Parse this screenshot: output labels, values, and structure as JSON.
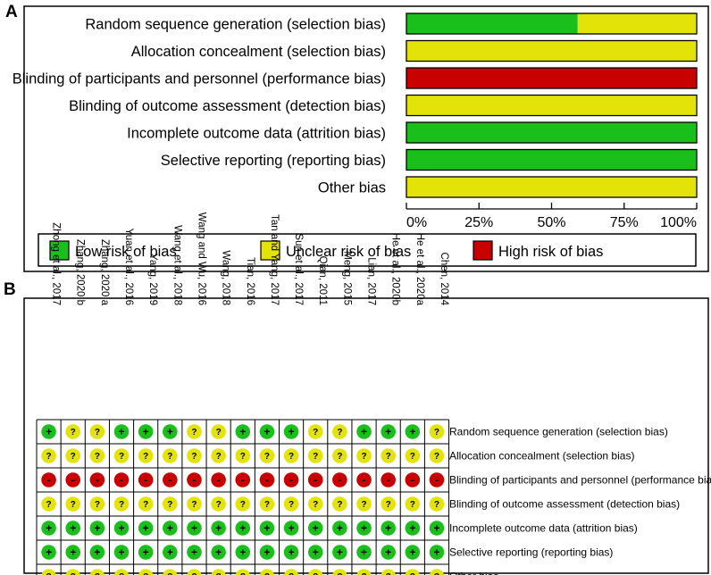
{
  "panel_a_label": "A",
  "panel_b_label": "B",
  "colors": {
    "low": "#1bbf1b",
    "unclear": "#e3e30a",
    "high": "#c80000"
  },
  "chart_data": [
    {
      "type": "bar",
      "orientation": "horizontal",
      "stacked": true,
      "title": "",
      "xlabel": "",
      "ylabel": "",
      "xlim": [
        0,
        100
      ],
      "ticks": [
        "0%",
        "25%",
        "50%",
        "75%",
        "100%"
      ],
      "categories": [
        "Random sequence generation (selection bias)",
        "Allocation concealment (selection bias)",
        "Blinding of participants and personnel (performance bias)",
        "Blinding of outcome assessment (detection bias)",
        "Incomplete outcome data (attrition bias)",
        "Selective reporting (reporting bias)",
        "Other bias"
      ],
      "series": [
        {
          "name": "Low risk of bias",
          "key": "low",
          "values": [
            59,
            0,
            0,
            0,
            100,
            100,
            0
          ]
        },
        {
          "name": "Unclear risk of bias",
          "key": "unclear",
          "values": [
            41,
            100,
            0,
            100,
            0,
            0,
            100
          ]
        },
        {
          "name": "High risk of bias",
          "key": "high",
          "values": [
            0,
            0,
            100,
            0,
            0,
            0,
            0
          ]
        }
      ],
      "legend": [
        "Low risk of bias",
        "Unclear risk of bias",
        "High risk of bias"
      ],
      "legend_position": "bottom"
    },
    {
      "type": "table",
      "title": "",
      "studies": [
        "Zhong et al., 2017",
        "Zhang, 2020 b",
        "Zhang, 2020 a",
        "Yuan et al., 2016",
        "Yang, 2019",
        "Wang et al., 2018",
        "Wang and Wu, 2016",
        "Wang, 2018",
        "Tian, 2016",
        "Tan and Yang, 2017",
        "Sun et al., 2017",
        "Qian, 2011",
        "Meng, 2015",
        "Lian, 2017",
        "He et al., 2020b",
        "He et al., 2020a",
        "Chen, 2014"
      ],
      "domains": [
        "Random sequence generation (selection bias)",
        "Allocation concealment (selection bias)",
        "Blinding of participants and personnel (performance bias)",
        "Blinding of outcome assessment (detection bias)",
        "Incomplete outcome data (attrition bias)",
        "Selective reporting (reporting bias)",
        "Other bias"
      ],
      "symbols": {
        "low": "+",
        "unclear": "?",
        "high": "-"
      },
      "ratings": [
        [
          "low",
          "unclear",
          "unclear",
          "low",
          "low",
          "low",
          "unclear",
          "unclear",
          "low",
          "low",
          "low",
          "unclear",
          "unclear",
          "low",
          "low",
          "low",
          "unclear"
        ],
        [
          "unclear",
          "unclear",
          "unclear",
          "unclear",
          "unclear",
          "unclear",
          "unclear",
          "unclear",
          "unclear",
          "unclear",
          "unclear",
          "unclear",
          "unclear",
          "unclear",
          "unclear",
          "unclear",
          "unclear"
        ],
        [
          "high",
          "high",
          "high",
          "high",
          "high",
          "high",
          "high",
          "high",
          "high",
          "high",
          "high",
          "high",
          "high",
          "high",
          "high",
          "high",
          "high"
        ],
        [
          "unclear",
          "unclear",
          "unclear",
          "unclear",
          "unclear",
          "unclear",
          "unclear",
          "unclear",
          "unclear",
          "unclear",
          "unclear",
          "unclear",
          "unclear",
          "unclear",
          "unclear",
          "unclear",
          "unclear"
        ],
        [
          "low",
          "low",
          "low",
          "low",
          "low",
          "low",
          "low",
          "low",
          "low",
          "low",
          "low",
          "low",
          "low",
          "low",
          "low",
          "low",
          "low"
        ],
        [
          "low",
          "low",
          "low",
          "low",
          "low",
          "low",
          "low",
          "low",
          "low",
          "low",
          "low",
          "low",
          "low",
          "low",
          "low",
          "low",
          "low"
        ],
        [
          "unclear",
          "unclear",
          "unclear",
          "unclear",
          "unclear",
          "unclear",
          "unclear",
          "unclear",
          "unclear",
          "unclear",
          "unclear",
          "unclear",
          "unclear",
          "unclear",
          "unclear",
          "unclear",
          "unclear"
        ]
      ]
    }
  ]
}
